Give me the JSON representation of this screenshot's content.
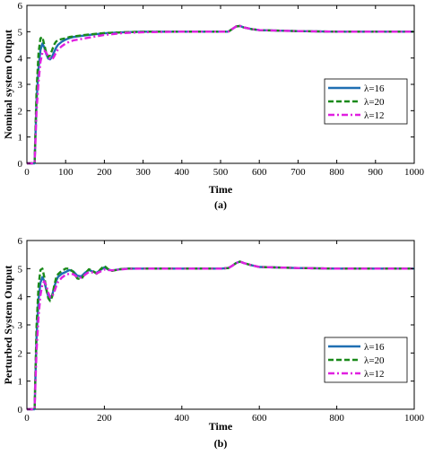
{
  "colors": {
    "lambda16": "#1f6fb2",
    "lambda20": "#1a8a1a",
    "lambda12": "#e020e0"
  },
  "chart_data": [
    {
      "type": "line",
      "caption": "(a)",
      "xlabel": "Time",
      "ylabel": "Nominal system Output",
      "xlim": [
        0,
        1000
      ],
      "ylim": [
        0,
        6
      ],
      "xticks": [
        0,
        100,
        200,
        300,
        400,
        500,
        600,
        700,
        800,
        900,
        1000
      ],
      "yticks": [
        0,
        1,
        2,
        3,
        4,
        5,
        6
      ],
      "grid": false,
      "legend_position": "right",
      "series": [
        {
          "name": "λ=16",
          "color": "#1f6fb2",
          "dash": "solid",
          "x": [
            0,
            20,
            22,
            25,
            30,
            35,
            40,
            45,
            50,
            55,
            60,
            65,
            70,
            75,
            80,
            90,
            100,
            110,
            120,
            150,
            200,
            250,
            300,
            400,
            500,
            520,
            530,
            540,
            550,
            560,
            580,
            600,
            700,
            800,
            900,
            1000
          ],
          "y": [
            0,
            0,
            1.0,
            2.4,
            3.6,
            4.3,
            4.55,
            4.4,
            4.15,
            3.98,
            3.95,
            4.05,
            4.22,
            4.38,
            4.5,
            4.62,
            4.7,
            4.76,
            4.8,
            4.86,
            4.94,
            4.98,
            5.0,
            5.0,
            5.0,
            5.0,
            5.1,
            5.2,
            5.22,
            5.16,
            5.1,
            5.06,
            5.02,
            5.0,
            5.0,
            5.0
          ]
        },
        {
          "name": "λ=20",
          "color": "#1a8a1a",
          "dash": "dashed",
          "x": [
            0,
            20,
            22,
            25,
            30,
            35,
            40,
            45,
            50,
            55,
            60,
            65,
            70,
            75,
            80,
            90,
            100,
            110,
            120,
            150,
            200,
            250,
            300,
            400,
            500,
            520,
            530,
            540,
            550,
            560,
            580,
            600,
            700,
            800,
            900,
            1000
          ],
          "y": [
            0,
            0,
            1.2,
            2.8,
            4.2,
            4.75,
            4.8,
            4.5,
            4.2,
            4.05,
            4.1,
            4.3,
            4.5,
            4.62,
            4.68,
            4.72,
            4.75,
            4.8,
            4.82,
            4.88,
            4.95,
            4.98,
            5.0,
            5.0,
            5.0,
            5.0,
            5.1,
            5.2,
            5.22,
            5.16,
            5.1,
            5.06,
            5.02,
            5.0,
            5.0,
            5.0
          ]
        },
        {
          "name": "λ=12",
          "color": "#e020e0",
          "dash": "dashdot",
          "x": [
            0,
            20,
            22,
            25,
            30,
            35,
            40,
            45,
            50,
            55,
            60,
            65,
            70,
            75,
            80,
            90,
            100,
            110,
            120,
            150,
            200,
            250,
            300,
            400,
            500,
            520,
            530,
            540,
            550,
            560,
            580,
            600,
            700,
            800,
            900,
            1000
          ],
          "y": [
            0,
            0,
            0.8,
            2.0,
            3.1,
            3.85,
            4.2,
            4.28,
            4.2,
            4.05,
            3.95,
            3.95,
            4.05,
            4.2,
            4.32,
            4.45,
            4.55,
            4.62,
            4.67,
            4.75,
            4.88,
            4.95,
            4.98,
            5.0,
            5.0,
            5.0,
            5.1,
            5.2,
            5.22,
            5.16,
            5.1,
            5.06,
            5.02,
            5.0,
            5.0,
            5.0
          ]
        }
      ]
    },
    {
      "type": "line",
      "caption": "(b)",
      "xlabel": "Time",
      "ylabel": "Perturbed System Output",
      "xlim": [
        0,
        1000
      ],
      "ylim": [
        0,
        6
      ],
      "xticks": [
        0,
        200,
        400,
        600,
        800,
        1000
      ],
      "yticks": [
        0,
        1,
        2,
        3,
        4,
        5,
        6
      ],
      "grid": false,
      "legend_position": "right",
      "series": [
        {
          "name": "λ=16",
          "color": "#1f6fb2",
          "dash": "solid",
          "x": [
            0,
            20,
            22,
            25,
            30,
            35,
            40,
            45,
            50,
            55,
            60,
            65,
            70,
            75,
            80,
            90,
            100,
            110,
            120,
            130,
            140,
            150,
            160,
            170,
            180,
            190,
            200,
            210,
            220,
            240,
            260,
            300,
            400,
            500,
            520,
            530,
            540,
            550,
            560,
            580,
            600,
            700,
            800,
            900,
            1000
          ],
          "y": [
            0,
            0,
            1.1,
            2.6,
            3.9,
            4.5,
            4.7,
            4.55,
            4.25,
            4.02,
            3.95,
            4.05,
            4.3,
            4.55,
            4.7,
            4.82,
            4.88,
            4.95,
            4.9,
            4.75,
            4.72,
            4.85,
            4.95,
            4.9,
            4.85,
            4.95,
            5.05,
            4.97,
            4.93,
            4.98,
            5.0,
            5.0,
            5.0,
            5.0,
            5.02,
            5.1,
            5.2,
            5.25,
            5.2,
            5.12,
            5.06,
            5.02,
            5.0,
            5.0,
            5.0
          ]
        },
        {
          "name": "λ=20",
          "color": "#1a8a1a",
          "dash": "dashed",
          "x": [
            0,
            20,
            22,
            25,
            30,
            35,
            40,
            45,
            50,
            55,
            60,
            65,
            70,
            75,
            80,
            90,
            100,
            110,
            120,
            130,
            140,
            150,
            160,
            170,
            180,
            190,
            200,
            210,
            220,
            240,
            260,
            300,
            400,
            500,
            520,
            530,
            540,
            550,
            560,
            580,
            600,
            700,
            800,
            900,
            1000
          ],
          "y": [
            0,
            0,
            1.3,
            3.0,
            4.4,
            4.95,
            5.0,
            4.7,
            4.3,
            3.95,
            3.85,
            4.0,
            4.35,
            4.65,
            4.8,
            4.92,
            5.0,
            5.0,
            4.88,
            4.65,
            4.62,
            4.82,
            4.98,
            4.92,
            4.82,
            4.98,
            5.1,
            4.98,
            4.92,
            4.98,
            5.0,
            5.0,
            5.0,
            5.0,
            5.02,
            5.1,
            5.2,
            5.25,
            5.2,
            5.12,
            5.06,
            5.02,
            5.0,
            5.0,
            5.0
          ]
        },
        {
          "name": "λ=12",
          "color": "#e020e0",
          "dash": "dashdot",
          "x": [
            0,
            20,
            22,
            25,
            30,
            35,
            40,
            45,
            50,
            55,
            60,
            65,
            70,
            75,
            80,
            90,
            100,
            110,
            120,
            130,
            140,
            150,
            160,
            170,
            180,
            190,
            200,
            210,
            220,
            240,
            260,
            300,
            400,
            500,
            520,
            530,
            540,
            550,
            560,
            580,
            600,
            700,
            800,
            900,
            1000
          ],
          "y": [
            0,
            0,
            0.9,
            2.1,
            3.3,
            4.05,
            4.45,
            4.55,
            4.4,
            4.15,
            3.98,
            4.0,
            4.15,
            4.35,
            4.52,
            4.68,
            4.78,
            4.82,
            4.8,
            4.7,
            4.68,
            4.78,
            4.88,
            4.86,
            4.83,
            4.9,
            4.97,
            4.95,
            4.94,
            4.97,
            4.99,
            5.0,
            5.0,
            5.0,
            5.02,
            5.1,
            5.2,
            5.25,
            5.2,
            5.12,
            5.06,
            5.02,
            5.0,
            5.0,
            5.0
          ]
        }
      ]
    }
  ]
}
